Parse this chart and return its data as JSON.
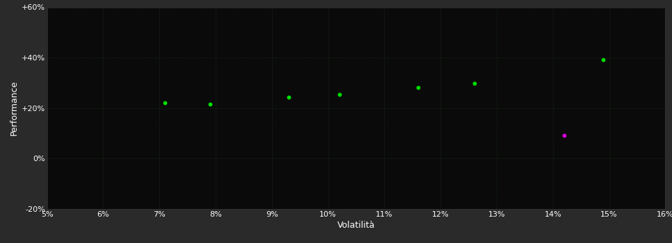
{
  "background_color": "#2a2a2a",
  "plot_bg_color": "#0a0a0a",
  "grid_color": "#1a3a1a",
  "grid_style": ":",
  "title": "",
  "xlabel": "Volatilità",
  "ylabel": "Performance",
  "xlim": [
    0.05,
    0.16
  ],
  "ylim": [
    -0.2,
    0.6
  ],
  "xticks": [
    0.05,
    0.06,
    0.07,
    0.08,
    0.09,
    0.1,
    0.11,
    0.12,
    0.13,
    0.14,
    0.15,
    0.16
  ],
  "yticks": [
    -0.2,
    0.0,
    0.2,
    0.4,
    0.6
  ],
  "ytick_labels": [
    "-20%",
    "0%",
    "+20%",
    "+40%",
    "+60%"
  ],
  "xtick_labels": [
    "5%",
    "6%",
    "7%",
    "8%",
    "9%",
    "10%",
    "11%",
    "12%",
    "13%",
    "14%",
    "15%",
    "16%"
  ],
  "green_points": [
    [
      0.071,
      0.222
    ],
    [
      0.079,
      0.215
    ],
    [
      0.093,
      0.242
    ],
    [
      0.102,
      0.255
    ],
    [
      0.116,
      0.283
    ],
    [
      0.126,
      0.298
    ],
    [
      0.149,
      0.393
    ]
  ],
  "magenta_points": [
    [
      0.142,
      0.092
    ]
  ],
  "green_color": "#00dd00",
  "magenta_color": "#dd00dd",
  "point_size": 18,
  "xlabel_color": "#ffffff",
  "ylabel_color": "#ffffff",
  "tick_color": "#ffffff",
  "tick_fontsize": 8,
  "label_fontsize": 9,
  "grid_linewidth": 0.5
}
